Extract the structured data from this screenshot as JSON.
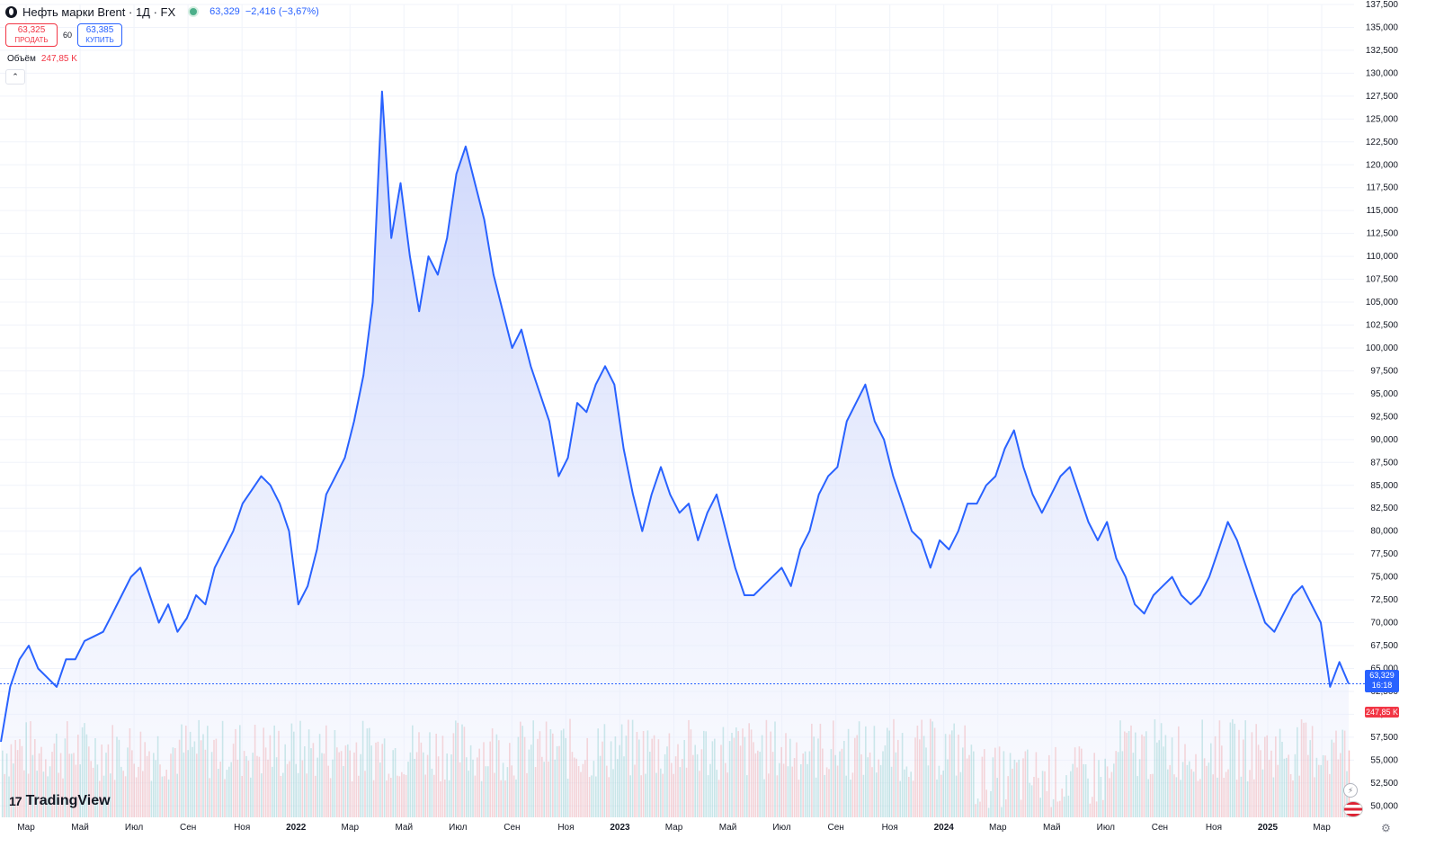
{
  "header": {
    "symbol_title": "Нефть марки Brent · 1Д · FX",
    "last_price": "63,329",
    "change": "−2,416 (−3,67%)"
  },
  "trade": {
    "sell_price": "63,325",
    "sell_label": "ПРОДАТЬ",
    "spread": "60",
    "buy_price": "63,385",
    "buy_label": "КУПИТЬ"
  },
  "volume": {
    "label": "Объём",
    "value": "247,85 K"
  },
  "price_tag": {
    "price": "63,329",
    "countdown": "16:18"
  },
  "volume_tag": "247,85 K",
  "logo_text": "TradingView",
  "icons": {
    "symbol": "brent-oil-icon",
    "live": "market-open-dot-icon",
    "collapse": "chevron-up-icon",
    "alert": "lightning-icon",
    "region": "us-flag-icon",
    "settings": "gear-icon"
  },
  "colors": {
    "line": "#2962ff",
    "area_top": "#c9d3fb",
    "volume_up": "#26a69a",
    "volume_down": "#ef5350",
    "sell": "#f23645",
    "buy": "#2962ff"
  },
  "chart_data": {
    "type": "area",
    "symbol": "Нефть марки Brent",
    "interval": "1Д",
    "ylim": [
      48750,
      137500
    ],
    "y_ticks": [
      "137,500",
      "135,000",
      "132,500",
      "130,000",
      "127,500",
      "125,000",
      "122,500",
      "120,000",
      "117,500",
      "115,000",
      "112,500",
      "110,000",
      "107,500",
      "105,000",
      "102,500",
      "100,000",
      "97,500",
      "95,000",
      "92,500",
      "90,000",
      "87,500",
      "85,000",
      "82,500",
      "80,000",
      "77,500",
      "75,000",
      "72,500",
      "70,000",
      "67,500",
      "65,000",
      "62,500",
      "60,000",
      "57,500",
      "55,000",
      "52,500",
      "50,000"
    ],
    "x_ticks": [
      "Мар",
      "Май",
      "Июл",
      "Сен",
      "Ноя",
      "2022",
      "Мар",
      "Май",
      "Июл",
      "Сен",
      "Ноя",
      "2023",
      "Мар",
      "Май",
      "Июл",
      "Сен",
      "Ноя",
      "2024",
      "Мар",
      "Май",
      "Июл",
      "Сен",
      "Ноя",
      "2025",
      "Мар"
    ],
    "x_start": "2021-02",
    "x_end": "2025-04",
    "series": [
      {
        "values": [
          57000,
          63000,
          66000,
          67500,
          65000,
          64000,
          63000,
          66000,
          66000,
          68000,
          68500,
          69000,
          71000,
          73000,
          75000,
          76000,
          73000,
          70000,
          72000,
          69000,
          70500,
          73000,
          72000,
          76000,
          78000,
          80000,
          83000,
          84500,
          86000,
          85000,
          83000,
          80000,
          72000,
          74000,
          78000,
          84000,
          86000,
          88000,
          92000,
          97000,
          105000,
          128000,
          112000,
          118000,
          110000,
          104000,
          110000,
          108000,
          112000,
          119000,
          122000,
          118000,
          114000,
          108000,
          104000,
          100000,
          102000,
          98000,
          95000,
          92000,
          86000,
          88000,
          94000,
          93000,
          96000,
          98000,
          96000,
          89000,
          84000,
          80000,
          84000,
          87000,
          84000,
          82000,
          83000,
          79000,
          82000,
          84000,
          80000,
          76000,
          73000,
          73000,
          74000,
          75000,
          76000,
          74000,
          78000,
          80000,
          84000,
          86000,
          87000,
          92000,
          94000,
          96000,
          92000,
          90000,
          86000,
          83000,
          80000,
          79000,
          76000,
          79000,
          78000,
          80000,
          83000,
          83000,
          85000,
          86000,
          89000,
          91000,
          87000,
          84000,
          82000,
          84000,
          86000,
          87000,
          84000,
          81000,
          79000,
          81000,
          77000,
          75000,
          72000,
          71000,
          73000,
          74000,
          75000,
          73000,
          72000,
          73000,
          75000,
          78000,
          81000,
          79000,
          76000,
          73000,
          70000,
          69000,
          71000,
          73000,
          74000,
          72000,
          70000,
          63000,
          65700,
          63329
        ]
      }
    ],
    "volume": {
      "last": 247850,
      "highlight_values": [
        247850
      ]
    }
  }
}
